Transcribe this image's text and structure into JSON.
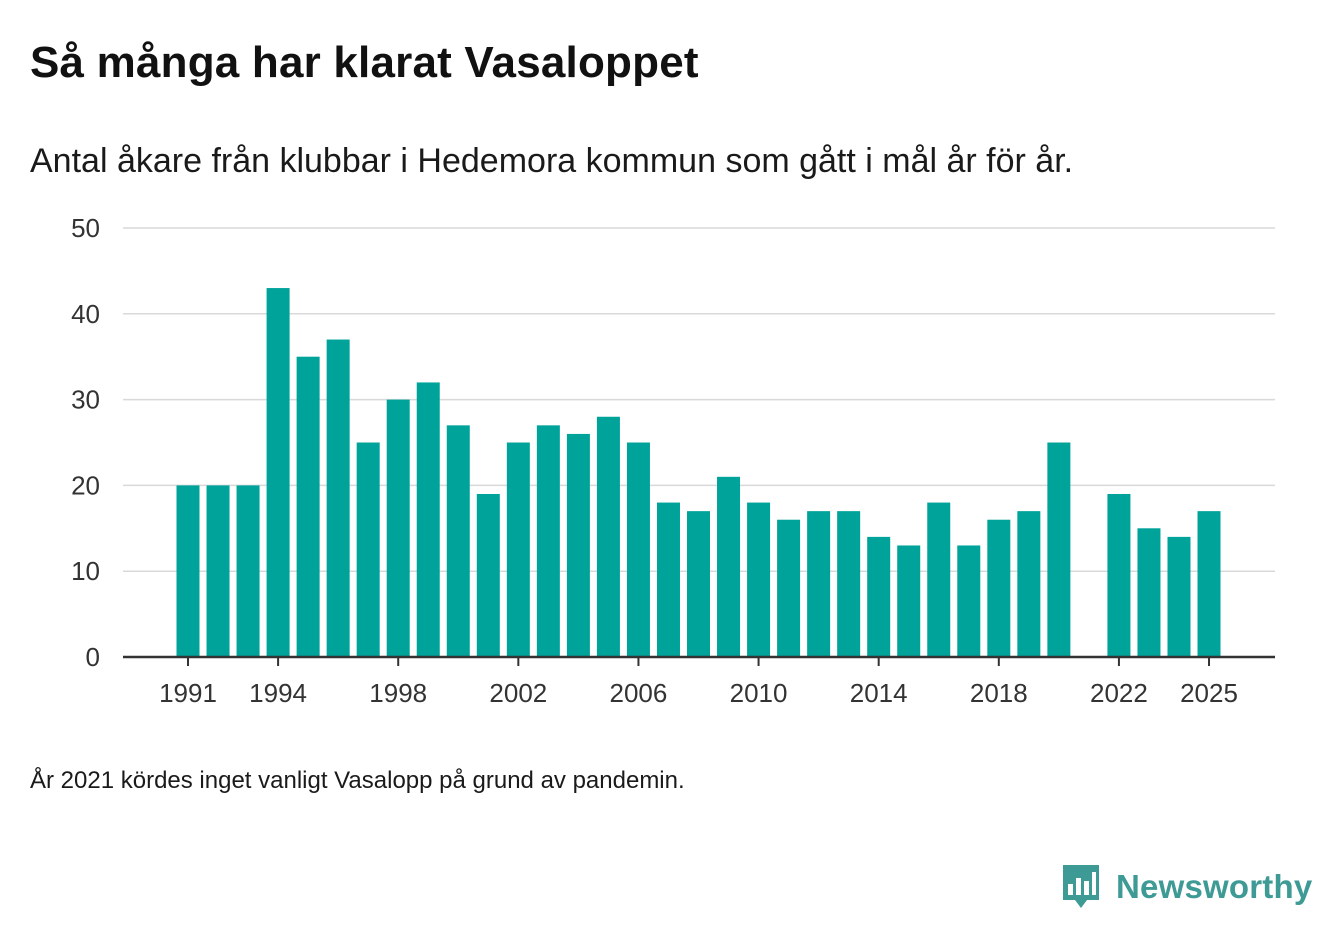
{
  "chart_data": {
    "type": "bar",
    "title": "Så många har klarat Vasaloppet",
    "subtitle": "Antal åkare från klubbar i Hedemora kommun som gått i mål år för år.",
    "xlabel": "",
    "ylabel": "",
    "ylim": [
      0,
      50
    ],
    "yticks": [
      0,
      10,
      20,
      30,
      40,
      50
    ],
    "xticks": [
      "1991",
      "1994",
      "1998",
      "2002",
      "2006",
      "2010",
      "2014",
      "2018",
      "2022",
      "2025"
    ],
    "grid": true,
    "bar_color": "#00a39a",
    "categories": [
      1991,
      1992,
      1993,
      1994,
      1995,
      1996,
      1997,
      1998,
      1999,
      2000,
      2001,
      2002,
      2003,
      2004,
      2005,
      2006,
      2007,
      2008,
      2009,
      2010,
      2011,
      2012,
      2013,
      2014,
      2015,
      2016,
      2017,
      2018,
      2019,
      2020,
      2021,
      2022,
      2023,
      2024,
      2025
    ],
    "values": [
      20,
      20,
      20,
      43,
      35,
      37,
      25,
      30,
      32,
      27,
      19,
      25,
      27,
      26,
      28,
      25,
      18,
      17,
      21,
      18,
      16,
      17,
      17,
      14,
      13,
      18,
      13,
      16,
      17,
      25,
      null,
      19,
      15,
      14,
      17
    ],
    "footnote": "År 2021 kördes inget vanligt Vasalopp på grund av pandemin."
  },
  "brand": {
    "name": "Newsworthy",
    "icon": "newsworthy-logo-icon",
    "color": "#3e9a94"
  }
}
